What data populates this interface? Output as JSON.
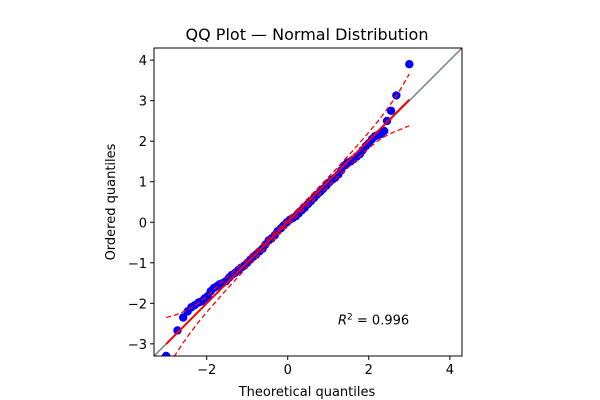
{
  "chart_data": {
    "type": "scatter",
    "title": "QQ Plot — Normal Distribution",
    "xlabel": "Theoretical quantiles",
    "ylabel": "Ordered quantiles",
    "xlim": [
      -3.3,
      4.3
    ],
    "ylim": [
      -3.3,
      4.3
    ],
    "xticks": [
      -2,
      0,
      2,
      4
    ],
    "yticks": [
      -3,
      -2,
      -1,
      0,
      1,
      2,
      3,
      4
    ],
    "grid": false,
    "annotation": {
      "label": "R",
      "superscript": "2",
      "text": " = 0.996",
      "x": 1.24,
      "y": -2.4
    },
    "reference_line": {
      "slope": 1,
      "intercept": 0,
      "color": "#708090"
    },
    "fit_line": {
      "slope": 1.005,
      "intercept": 0.01,
      "x_range": [
        -3.0,
        3.0
      ],
      "color": "#ff0000"
    },
    "confidence_band": {
      "color": "#ff0000",
      "x": [
        -3.0,
        -2.8,
        -2.6,
        -2.4,
        -2.2,
        -2.0,
        -1.6,
        -1.2,
        -0.8,
        -0.4,
        0,
        0.4,
        0.8,
        1.2,
        1.6,
        2.0,
        2.2,
        2.4,
        2.6,
        2.8,
        3.0
      ],
      "upper": [
        -2.35,
        -2.3,
        -2.22,
        -2.12,
        -1.99,
        -1.83,
        -1.45,
        -1.08,
        -0.7,
        -0.32,
        0.08,
        0.49,
        0.9,
        1.32,
        1.76,
        2.22,
        2.46,
        2.72,
        3.0,
        3.31,
        3.66
      ],
      "lower": [
        -3.66,
        -3.31,
        -3.0,
        -2.72,
        -2.46,
        -2.22,
        -1.76,
        -1.32,
        -0.9,
        -0.49,
        -0.08,
        0.32,
        0.7,
        1.08,
        1.45,
        1.83,
        1.99,
        2.12,
        2.22,
        2.3,
        2.38
      ]
    },
    "points_color": "#0000ff",
    "points": [
      [
        -3.0,
        -3.3
      ],
      [
        -2.72,
        -2.67
      ],
      [
        -2.58,
        -2.35
      ],
      [
        -2.47,
        -2.2
      ],
      [
        -2.38,
        -2.1
      ],
      [
        -2.3,
        -2.05
      ],
      [
        -2.2,
        -1.98
      ],
      [
        -2.12,
        -1.95
      ],
      [
        -2.05,
        -1.88
      ],
      [
        -1.97,
        -1.82
      ],
      [
        -1.9,
        -1.7
      ],
      [
        -1.82,
        -1.62
      ],
      [
        -1.75,
        -1.58
      ],
      [
        -1.68,
        -1.53
      ],
      [
        -1.6,
        -1.5
      ],
      [
        -1.52,
        -1.45
      ],
      [
        -1.45,
        -1.37
      ],
      [
        -1.38,
        -1.3
      ],
      [
        -1.3,
        -1.25
      ],
      [
        -1.22,
        -1.18
      ],
      [
        -1.15,
        -1.12
      ],
      [
        -1.07,
        -1.07
      ],
      [
        -1.0,
        -1.0
      ],
      [
        -0.92,
        -0.92
      ],
      [
        -0.85,
        -0.85
      ],
      [
        -0.78,
        -0.8
      ],
      [
        -0.7,
        -0.72
      ],
      [
        -0.62,
        -0.65
      ],
      [
        -0.55,
        -0.55
      ],
      [
        -0.47,
        -0.45
      ],
      [
        -0.4,
        -0.4
      ],
      [
        -0.32,
        -0.32
      ],
      [
        -0.25,
        -0.22
      ],
      [
        -0.17,
        -0.15
      ],
      [
        -0.1,
        -0.08
      ],
      [
        -0.02,
        0.0
      ],
      [
        0.05,
        0.06
      ],
      [
        0.12,
        0.1
      ],
      [
        0.2,
        0.15
      ],
      [
        0.27,
        0.22
      ],
      [
        0.35,
        0.3
      ],
      [
        0.42,
        0.36
      ],
      [
        0.5,
        0.45
      ],
      [
        0.57,
        0.52
      ],
      [
        0.65,
        0.6
      ],
      [
        0.72,
        0.68
      ],
      [
        0.8,
        0.75
      ],
      [
        0.87,
        0.82
      ],
      [
        0.95,
        0.9
      ],
      [
        1.02,
        0.98
      ],
      [
        1.1,
        1.05
      ],
      [
        1.17,
        1.1
      ],
      [
        1.25,
        1.18
      ],
      [
        1.32,
        1.28
      ],
      [
        1.4,
        1.4
      ],
      [
        1.47,
        1.47
      ],
      [
        1.55,
        1.5
      ],
      [
        1.62,
        1.55
      ],
      [
        1.7,
        1.62
      ],
      [
        1.78,
        1.68
      ],
      [
        1.85,
        1.78
      ],
      [
        1.93,
        1.88
      ],
      [
        2.0,
        1.95
      ],
      [
        2.08,
        2.05
      ],
      [
        2.15,
        2.12
      ],
      [
        2.22,
        2.15
      ],
      [
        2.3,
        2.18
      ],
      [
        2.38,
        2.25
      ],
      [
        2.45,
        2.5
      ],
      [
        2.55,
        2.75
      ],
      [
        2.68,
        3.13
      ],
      [
        3.0,
        3.9
      ]
    ]
  }
}
